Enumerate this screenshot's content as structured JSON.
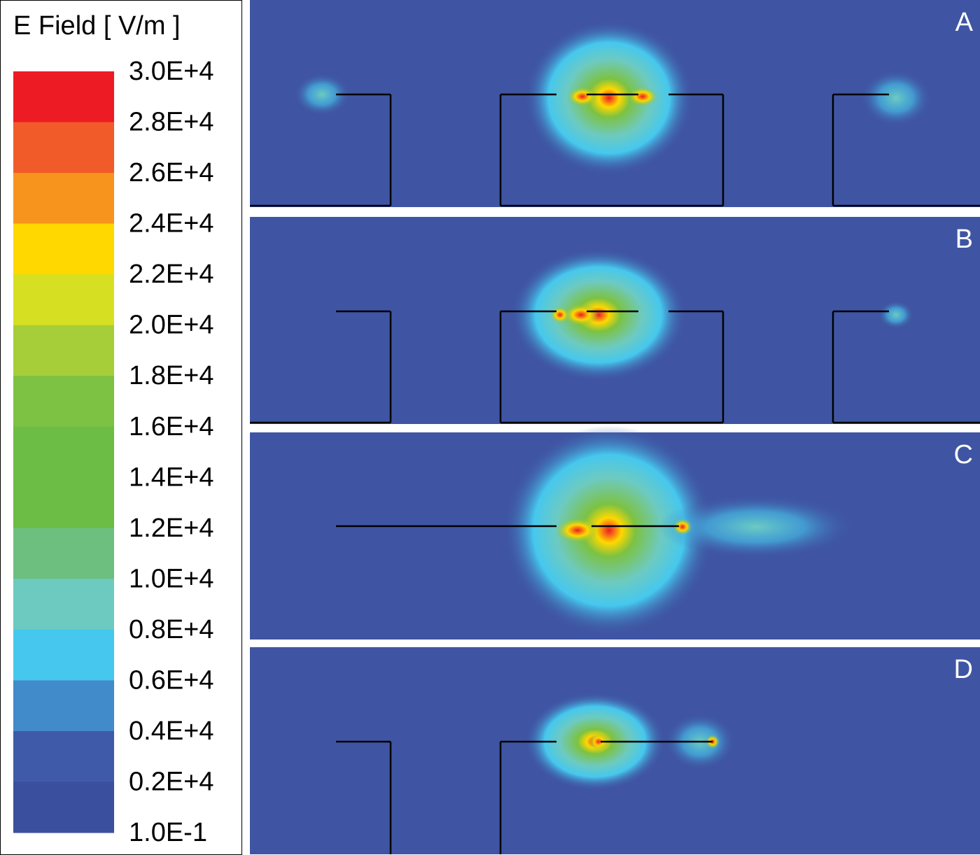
{
  "legend": {
    "title": "E Field [ V/m ]",
    "labels": [
      "3.0E+4",
      "2.8E+4",
      "2.6E+4",
      "2.4E+4",
      "2.2E+4",
      "2.0E+4",
      "1.8E+4",
      "1.6E+4",
      "1.4E+4",
      "1.2E+4",
      "1.0E+4",
      "0.8E+4",
      "0.6E+4",
      "0.4E+4",
      "0.2E+4",
      "1.0E-1"
    ],
    "colors": [
      "#ed1c24",
      "#f15a29",
      "#f7941d",
      "#ffd800",
      "#d7df23",
      "#a6ce39",
      "#7dc242",
      "#6cbd45",
      "#6bbd45",
      "#6dbf7f",
      "#6dcac0",
      "#46c8ee",
      "#428bca",
      "#3f5aa8",
      "#3a4f9e"
    ]
  },
  "panels": [
    {
      "label": "A"
    },
    {
      "label": "B"
    },
    {
      "label": "C"
    },
    {
      "label": "D"
    }
  ]
}
